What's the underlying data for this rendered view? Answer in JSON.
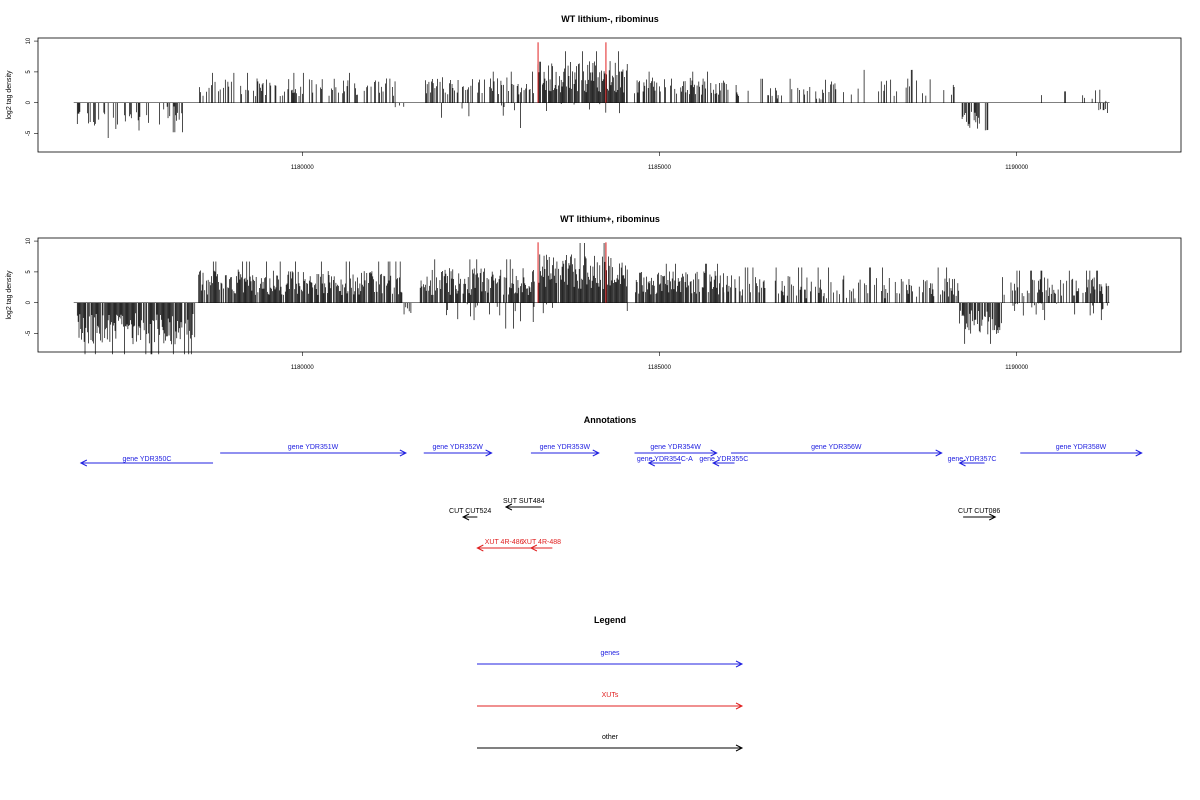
{
  "chart_data": [
    {
      "type": "bar",
      "title": "WT lithium-, ribominus",
      "ylabel": "log2 tag density",
      "xlim": [
        1176300,
        1192300
      ],
      "ylim": [
        -8,
        10.5
      ],
      "yticks": [
        -5,
        0,
        5,
        10
      ],
      "xticks": [
        1180000,
        1185000,
        1190000
      ],
      "xtick_labels": [
        "1180000",
        "1185000",
        "1190000"
      ],
      "ytick_labels": [
        "-5",
        "0",
        "5",
        "10"
      ],
      "markers": {
        "positions": [
          1183300,
          1184250
        ],
        "color": "#e02020",
        "height": 9.8
      },
      "segments": [
        {
          "start": 1176850,
          "end": 1178000,
          "mean": -2.6,
          "amp": 1.2,
          "density": 0.25
        },
        {
          "start": 1178000,
          "end": 1178450,
          "mean": -2.2,
          "amp": 1.0,
          "density": 0.3
        },
        {
          "start": 1178550,
          "end": 1181300,
          "mean": 2.5,
          "amp": 0.9,
          "density": 0.45
        },
        {
          "start": 1181300,
          "end": 1181450,
          "mean": -0.8,
          "amp": 0.4,
          "density": 0.3
        },
        {
          "start": 1181700,
          "end": 1183300,
          "mean": 2.7,
          "amp": 0.9,
          "density": 0.5
        },
        {
          "start": 1181900,
          "end": 1183250,
          "mean": -1.5,
          "amp": 1.0,
          "density": 0.08
        },
        {
          "start": 1183300,
          "end": 1184550,
          "mean": 4.2,
          "amp": 1.6,
          "density": 0.9
        },
        {
          "start": 1183300,
          "end": 1184550,
          "mean": -1.0,
          "amp": 0.8,
          "density": 0.06
        },
        {
          "start": 1184650,
          "end": 1186000,
          "mean": 2.7,
          "amp": 0.9,
          "density": 0.6
        },
        {
          "start": 1186000,
          "end": 1187300,
          "mean": 1.8,
          "amp": 0.8,
          "density": 0.25
        },
        {
          "start": 1187300,
          "end": 1189200,
          "mean": 2.2,
          "amp": 1.2,
          "density": 0.2
        },
        {
          "start": 1189200,
          "end": 1189650,
          "mean": -2.8,
          "amp": 1.1,
          "density": 0.6
        },
        {
          "start": 1190000,
          "end": 1191300,
          "mean": 1.2,
          "amp": 0.6,
          "density": 0.08
        },
        {
          "start": 1191150,
          "end": 1191300,
          "mean": -1.2,
          "amp": 0.4,
          "density": 0.3
        }
      ]
    },
    {
      "type": "bar",
      "title": "WT lithium+, ribominus",
      "ylabel": "log2 tag density",
      "xlim": [
        1176300,
        1192300
      ],
      "ylim": [
        -8,
        10.5
      ],
      "yticks": [
        -5,
        0,
        5,
        10
      ],
      "xticks": [
        1180000,
        1185000,
        1190000
      ],
      "xtick_labels": [
        "1180000",
        "1185000",
        "1190000"
      ],
      "ytick_labels": [
        "-5",
        "0",
        "5",
        "10"
      ],
      "markers": {
        "positions": [
          1183300,
          1184250
        ],
        "color": "#e02020",
        "height": 9.8
      },
      "segments": [
        {
          "start": 1176850,
          "end": 1178500,
          "mean": -4.2,
          "amp": 1.6,
          "density": 0.95
        },
        {
          "start": 1178550,
          "end": 1181400,
          "mean": 3.3,
          "amp": 1.3,
          "density": 0.85
        },
        {
          "start": 1181400,
          "end": 1181550,
          "mean": -1.2,
          "amp": 0.5,
          "density": 0.3
        },
        {
          "start": 1181650,
          "end": 1183250,
          "mean": 3.4,
          "amp": 1.4,
          "density": 0.85
        },
        {
          "start": 1181900,
          "end": 1183250,
          "mean": -1.6,
          "amp": 1.0,
          "density": 0.18
        },
        {
          "start": 1183300,
          "end": 1184550,
          "mean": 5.0,
          "amp": 1.8,
          "density": 0.95
        },
        {
          "start": 1183300,
          "end": 1184550,
          "mean": -1.2,
          "amp": 0.8,
          "density": 0.1
        },
        {
          "start": 1184650,
          "end": 1185900,
          "mean": 3.2,
          "amp": 1.2,
          "density": 0.9
        },
        {
          "start": 1185900,
          "end": 1189200,
          "mean": 2.6,
          "amp": 1.2,
          "density": 0.5
        },
        {
          "start": 1189200,
          "end": 1189800,
          "mean": -3.3,
          "amp": 1.3,
          "density": 0.85
        },
        {
          "start": 1189800,
          "end": 1191300,
          "mean": 2.6,
          "amp": 1.0,
          "density": 0.55
        },
        {
          "start": 1189900,
          "end": 1191300,
          "mean": -1.0,
          "amp": 0.7,
          "density": 0.15
        }
      ]
    }
  ],
  "annotations": {
    "title": "Annotations",
    "items": [
      {
        "label": "gene YDR350C",
        "start": 1176900,
        "end": 1178750,
        "strand": "-",
        "color": "#2020e0",
        "lane": 1
      },
      {
        "label": "gene YDR351W",
        "start": 1178850,
        "end": 1181450,
        "strand": "+",
        "color": "#2020e0",
        "lane": 0
      },
      {
        "label": "gene YDR352W",
        "start": 1181700,
        "end": 1182650,
        "strand": "+",
        "color": "#2020e0",
        "lane": 0
      },
      {
        "label": "gene YDR353W",
        "start": 1183200,
        "end": 1184150,
        "strand": "+",
        "color": "#2020e0",
        "lane": 0
      },
      {
        "label": "gene YDR354W",
        "start": 1184650,
        "end": 1185800,
        "strand": "+",
        "color": "#2020e0",
        "lane": 0
      },
      {
        "label": "gene YDR354C-A",
        "start": 1184850,
        "end": 1185300,
        "strand": "-",
        "color": "#2020e0",
        "lane": 1
      },
      {
        "label": "gene YDR355C",
        "start": 1185750,
        "end": 1186050,
        "strand": "-",
        "color": "#2020e0",
        "lane": 1
      },
      {
        "label": "gene YDR356W",
        "start": 1186000,
        "end": 1188950,
        "strand": "+",
        "color": "#2020e0",
        "lane": 0
      },
      {
        "label": "gene YDR357C",
        "start": 1189200,
        "end": 1189550,
        "strand": "-",
        "color": "#2020e0",
        "lane": 1
      },
      {
        "label": "gene YDR358W",
        "start": 1190050,
        "end": 1191750,
        "strand": "+",
        "color": "#2020e0",
        "lane": 0
      },
      {
        "label": "SUT SUT484",
        "start": 1182850,
        "end": 1183350,
        "strand": "-",
        "color": "#000000",
        "lane": 3
      },
      {
        "label": "CUT CUT524",
        "start": 1182250,
        "end": 1182450,
        "strand": "-",
        "color": "#000000",
        "lane": 4
      },
      {
        "label": "CUT CUT086",
        "start": 1189250,
        "end": 1189700,
        "strand": "+",
        "color": "#000000",
        "lane": 4
      },
      {
        "label": "XUT 4R-486",
        "start": 1182450,
        "end": 1183200,
        "strand": "-",
        "color": "#e02020",
        "lane": 5
      },
      {
        "label": "XUT 4R-488",
        "start": 1183200,
        "end": 1183500,
        "strand": "-",
        "color": "#e02020",
        "lane": 5
      }
    ]
  },
  "legend": {
    "title": "Legend",
    "items": [
      {
        "label": "genes",
        "color": "#2020e0"
      },
      {
        "label": "XUTs",
        "color": "#e02020"
      },
      {
        "label": "other",
        "color": "#000000"
      }
    ]
  }
}
